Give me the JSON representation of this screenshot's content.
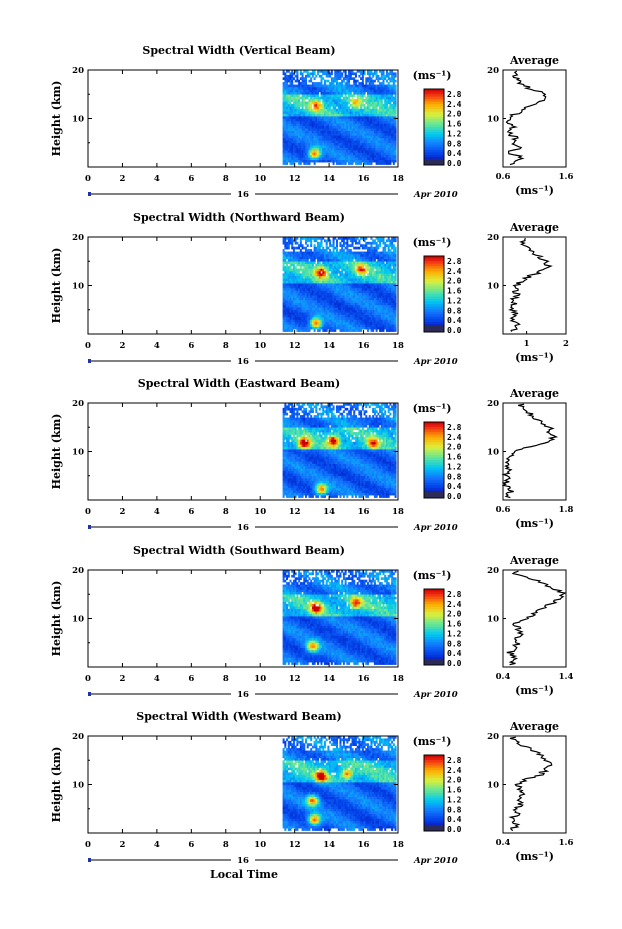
{
  "figure": {
    "xlabel": "Local Time",
    "unit_label": "(ms⁻¹)",
    "day_label": "16",
    "month_label": "Apr 2010",
    "avg_title": "Average",
    "avg_xlabel": "(ms⁻¹)"
  },
  "chart_data": [
    {
      "type": "heatmap",
      "title": "Spectral Width (Vertical Beam)",
      "ylabel": "Height (km)",
      "xlim": [
        0,
        18
      ],
      "ylim": [
        0,
        20
      ],
      "x_ticks": [
        "0",
        "2",
        "4",
        "6",
        "8",
        "10",
        "12",
        "14",
        "16",
        "18"
      ],
      "y_ticks": [
        "20",
        "10"
      ],
      "colorbar_ticks": [
        "2.8",
        "2.4",
        "2.0",
        "1.6",
        "1.2",
        "0.8",
        "0.4",
        "0.0"
      ],
      "data_start_hour": 11.3,
      "data_end_hour": 17.9,
      "hotspots": [
        {
          "t": 13.1,
          "h": 2.5,
          "v": 2.6
        },
        {
          "t": 13.2,
          "h": 12.5,
          "v": 1.9
        },
        {
          "t": 15.5,
          "h": 13.0,
          "v": 1.6
        }
      ],
      "profile": {
        "title": "Average",
        "xlim": [
          0.6,
          1.6
        ],
        "x_ticks": [
          "0.6",
          "1.6"
        ],
        "h": [
          1,
          2,
          3,
          4,
          5,
          6,
          7,
          8,
          9,
          10,
          11,
          12,
          13,
          14,
          15,
          16,
          17,
          18,
          19
        ],
        "v": [
          0.75,
          0.9,
          0.7,
          0.85,
          0.72,
          0.8,
          0.7,
          0.76,
          0.7,
          0.72,
          0.8,
          0.95,
          1.1,
          1.3,
          1.3,
          1.05,
          0.9,
          0.85,
          0.8
        ]
      }
    },
    {
      "type": "heatmap",
      "title": "Spectral Width (Northward Beam)",
      "ylabel": "Height (km)",
      "xlim": [
        0,
        18
      ],
      "ylim": [
        0,
        20
      ],
      "x_ticks": [
        "0",
        "2",
        "4",
        "6",
        "8",
        "10",
        "12",
        "14",
        "16",
        "18"
      ],
      "y_ticks": [
        "20",
        "10"
      ],
      "colorbar_ticks": [
        "2.8",
        "2.4",
        "2.0",
        "1.6",
        "1.2",
        "0.8",
        "0.4",
        "0.0"
      ],
      "data_start_hour": 11.3,
      "data_end_hour": 17.9,
      "hotspots": [
        {
          "t": 13.2,
          "h": 2.0,
          "v": 2.7
        },
        {
          "t": 13.5,
          "h": 12.5,
          "v": 2.6
        },
        {
          "t": 15.8,
          "h": 13.0,
          "v": 2.0
        }
      ],
      "profile": {
        "title": "Average",
        "xlim": [
          0.4,
          2.0
        ],
        "x_ticks": [
          "1",
          "2"
        ],
        "h": [
          1,
          2,
          3,
          4,
          5,
          6,
          7,
          8,
          9,
          10,
          11,
          12,
          13,
          14,
          15,
          16,
          17,
          18,
          19
        ],
        "v": [
          0.7,
          0.8,
          0.65,
          0.75,
          0.6,
          0.7,
          0.65,
          0.8,
          0.7,
          0.75,
          0.9,
          1.1,
          1.4,
          1.55,
          1.5,
          1.3,
          1.1,
          1.0,
          0.9
        ]
      }
    },
    {
      "type": "heatmap",
      "title": "Spectral Width (Eastward Beam)",
      "ylabel": "Height (km)",
      "xlim": [
        0,
        18
      ],
      "ylim": [
        0,
        20
      ],
      "x_ticks": [
        "0",
        "2",
        "4",
        "6",
        "8",
        "10",
        "12",
        "14",
        "16",
        "18"
      ],
      "y_ticks": [
        "20",
        "10"
      ],
      "colorbar_ticks": [
        "2.8",
        "2.4",
        "2.0",
        "1.6",
        "1.2",
        "0.8",
        "0.4",
        "0.0"
      ],
      "data_start_hour": 11.3,
      "data_end_hour": 17.9,
      "hotspots": [
        {
          "t": 13.5,
          "h": 2.0,
          "v": 2.6
        },
        {
          "t": 12.5,
          "h": 11.5,
          "v": 2.7
        },
        {
          "t": 14.2,
          "h": 12.0,
          "v": 2.6
        },
        {
          "t": 16.5,
          "h": 11.5,
          "v": 2.2
        }
      ],
      "profile": {
        "title": "Average",
        "xlim": [
          0.6,
          1.8
        ],
        "x_ticks": [
          "0.6",
          "1.8"
        ],
        "h": [
          1,
          2,
          3,
          4,
          5,
          6,
          7,
          8,
          9,
          10,
          11,
          12,
          13,
          14,
          15,
          16,
          17,
          18,
          19
        ],
        "v": [
          0.7,
          0.75,
          0.65,
          0.7,
          0.66,
          0.7,
          0.68,
          0.7,
          0.72,
          0.8,
          1.15,
          1.5,
          1.55,
          1.45,
          1.5,
          1.3,
          1.2,
          1.1,
          0.95
        ]
      }
    },
    {
      "type": "heatmap",
      "title": "Spectral Width (Southward Beam)",
      "ylabel": "Height (km)",
      "xlim": [
        0,
        18
      ],
      "ylim": [
        0,
        20
      ],
      "x_ticks": [
        "0",
        "2",
        "4",
        "6",
        "8",
        "10",
        "12",
        "14",
        "16",
        "18"
      ],
      "y_ticks": [
        "20",
        "10"
      ],
      "colorbar_ticks": [
        "2.8",
        "2.4",
        "2.0",
        "1.6",
        "1.2",
        "0.8",
        "0.4",
        "0.0"
      ],
      "data_start_hour": 11.3,
      "data_end_hour": 17.9,
      "hotspots": [
        {
          "t": 13.0,
          "h": 4.0,
          "v": 2.4
        },
        {
          "t": 13.2,
          "h": 12.0,
          "v": 2.6
        },
        {
          "t": 15.5,
          "h": 13.0,
          "v": 2.1
        }
      ],
      "profile": {
        "title": "Average",
        "xlim": [
          0.4,
          1.4
        ],
        "x_ticks": [
          "0.4",
          "1.4"
        ],
        "h": [
          1,
          2,
          3,
          4,
          5,
          6,
          7,
          8,
          9,
          10,
          11,
          12,
          13,
          14,
          15,
          16,
          17,
          18,
          19
        ],
        "v": [
          0.55,
          0.6,
          0.5,
          0.65,
          0.6,
          0.62,
          0.7,
          0.65,
          0.6,
          0.75,
          0.9,
          1.0,
          1.15,
          1.3,
          1.35,
          1.25,
          1.05,
          0.9,
          0.6
        ]
      }
    },
    {
      "type": "heatmap",
      "title": "Spectral Width (Westward Beam)",
      "ylabel": "Height (km)",
      "xlim": [
        0,
        18
      ],
      "ylim": [
        0,
        20
      ],
      "x_ticks": [
        "0",
        "2",
        "4",
        "6",
        "8",
        "10",
        "12",
        "14",
        "16",
        "18"
      ],
      "y_ticks": [
        "20",
        "10"
      ],
      "colorbar_ticks": [
        "2.8",
        "2.4",
        "2.0",
        "1.6",
        "1.2",
        "0.8",
        "0.4",
        "0.0"
      ],
      "data_start_hour": 11.3,
      "data_end_hour": 17.9,
      "hotspots": [
        {
          "t": 13.1,
          "h": 2.5,
          "v": 2.7
        },
        {
          "t": 13.0,
          "h": 6.5,
          "v": 2.5
        },
        {
          "t": 13.5,
          "h": 11.5,
          "v": 2.6
        },
        {
          "t": 15.0,
          "h": 12.0,
          "v": 2.0
        }
      ],
      "profile": {
        "title": "Average",
        "xlim": [
          0.4,
          1.6
        ],
        "x_ticks": [
          "0.4",
          "1.6"
        ],
        "h": [
          1,
          2,
          3,
          4,
          5,
          6,
          7,
          8,
          9,
          10,
          11,
          12,
          13,
          14,
          15,
          16,
          17,
          18,
          19
        ],
        "v": [
          0.6,
          0.65,
          0.55,
          0.7,
          0.62,
          0.75,
          0.7,
          0.8,
          0.72,
          0.7,
          0.85,
          1.1,
          1.2,
          1.3,
          1.25,
          1.15,
          1.0,
          0.8,
          0.6
        ]
      }
    }
  ]
}
